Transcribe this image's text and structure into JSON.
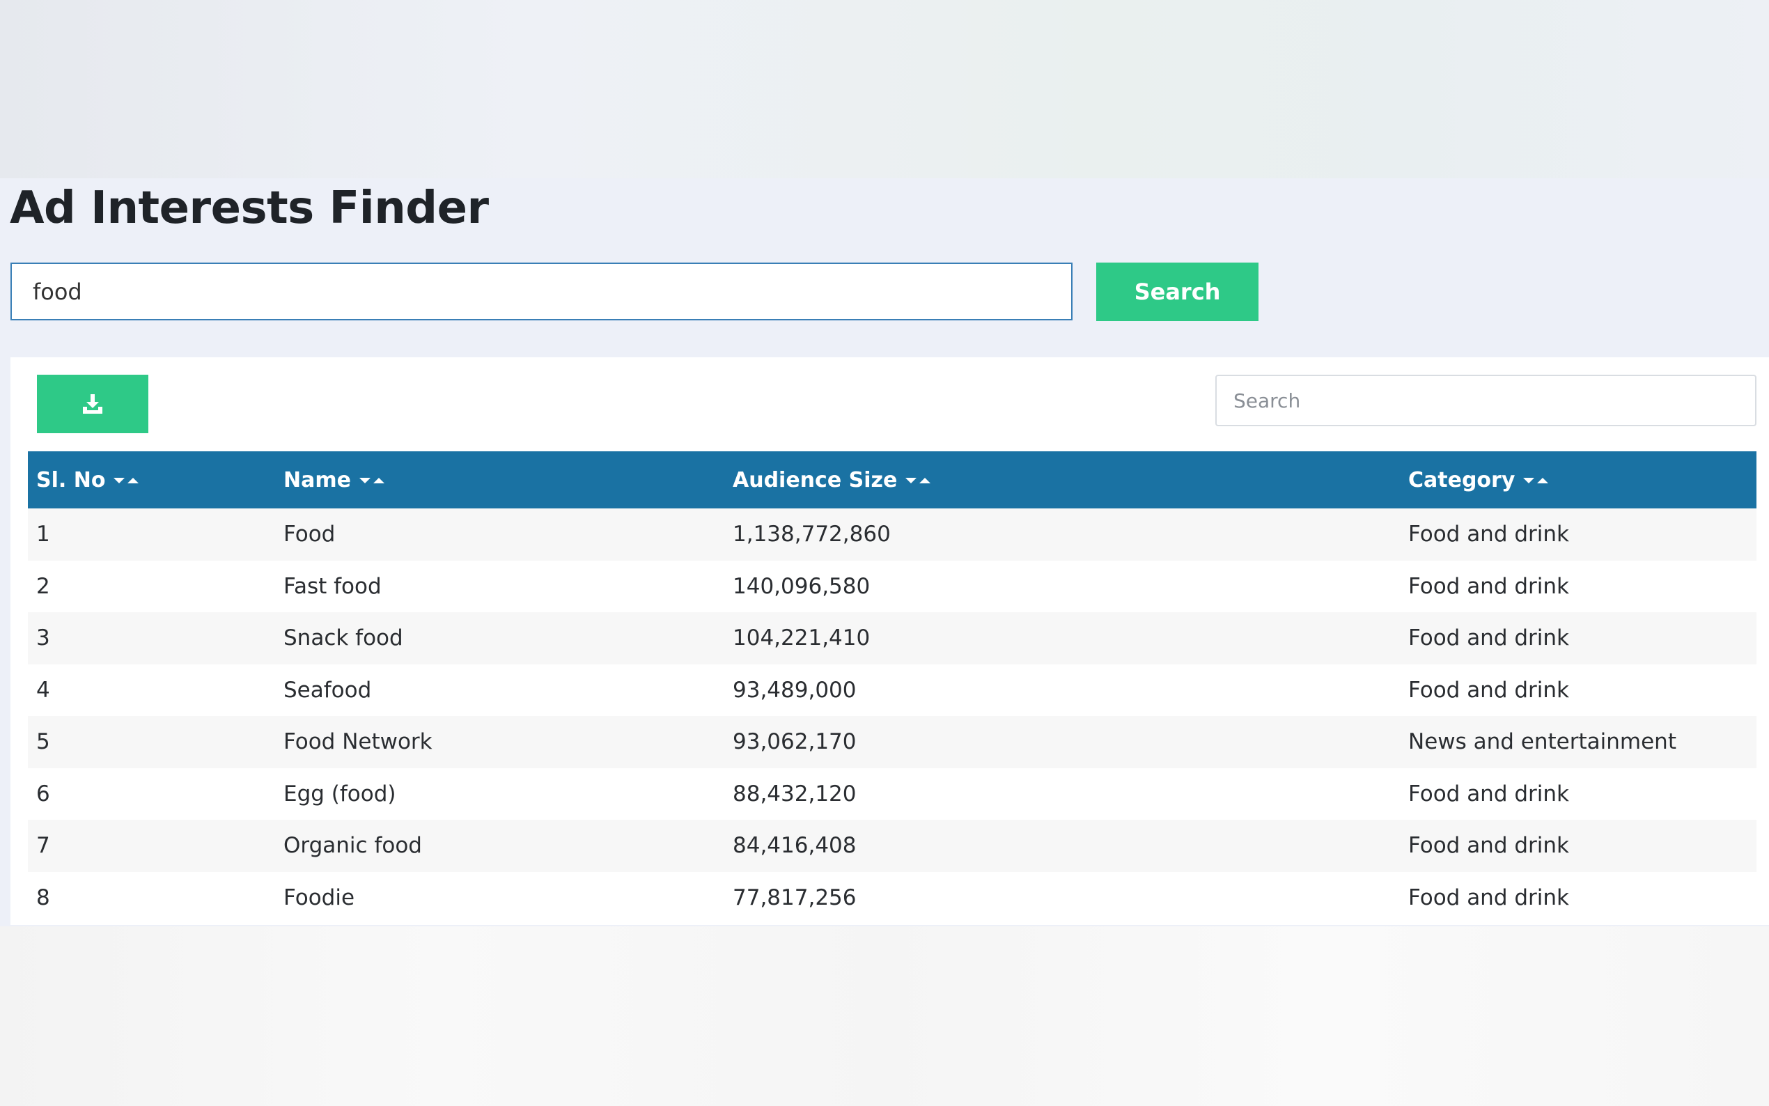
{
  "page": {
    "title": "Ad Interests Finder"
  },
  "search": {
    "value": "food",
    "button_label": "Search"
  },
  "toolbar": {
    "download_icon": "download-icon",
    "table_search_placeholder": "Search"
  },
  "table": {
    "columns": [
      "Sl. No",
      "Name",
      "Audience Size",
      "Category"
    ],
    "rows": [
      [
        "1",
        "Food",
        "1,138,772,860",
        "Food and drink"
      ],
      [
        "2",
        "Fast food",
        "140,096,580",
        "Food and drink"
      ],
      [
        "3",
        "Snack food",
        "104,221,410",
        "Food and drink"
      ],
      [
        "4",
        "Seafood",
        "93,489,000",
        "Food and drink"
      ],
      [
        "5",
        "Food Network",
        "93,062,170",
        "News and entertainment"
      ],
      [
        "6",
        "Egg (food)",
        "88,432,120",
        "Food and drink"
      ],
      [
        "7",
        "Organic food",
        "84,416,408",
        "Food and drink"
      ],
      [
        "8",
        "Foodie",
        "77,817,256",
        "Food and drink"
      ]
    ]
  },
  "colors": {
    "accent_green": "#2ec987",
    "header_blue": "#1a72a3",
    "input_border": "#3a7fb6"
  }
}
